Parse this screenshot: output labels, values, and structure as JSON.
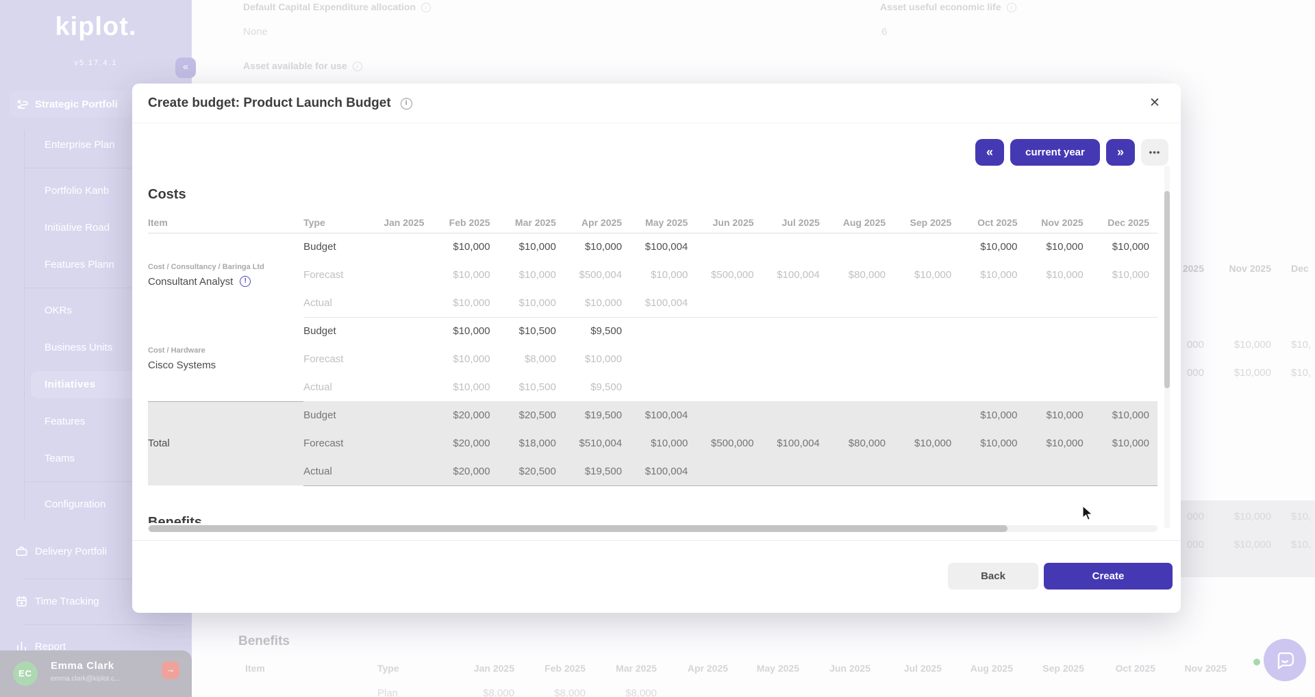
{
  "colors": {
    "accent": "#4539b3",
    "sidebar": "#d9d7ee",
    "total_row_bg": "#e9e9e9",
    "logout_red": "#efa29b",
    "avatar_green": "#aed7b2"
  },
  "sidebar": {
    "logo": "kiplot.",
    "version": "v5.17.4.1",
    "collapse_glyph": "«",
    "section": {
      "label": "Strategic Portfoli"
    },
    "items": [
      {
        "label": "Enterprise Plan",
        "divider_after": true
      },
      {
        "label": "Portfolio Kanb"
      },
      {
        "label": "Initiative Road"
      },
      {
        "label": "Features Plann",
        "divider_after": true
      },
      {
        "label": "OKRs"
      },
      {
        "label": "Business Units"
      },
      {
        "label": "Initiatives",
        "active": true
      },
      {
        "label": "Features"
      },
      {
        "label": "Teams",
        "divider_after": true
      },
      {
        "label": "Configuration"
      }
    ],
    "bottom_items": [
      {
        "label": "Delivery Portfoli",
        "icon": "briefcase"
      },
      {
        "label": "Time Tracking",
        "icon": "calendar"
      },
      {
        "label": "Report",
        "icon": "report"
      }
    ],
    "user": {
      "initials": "EC",
      "name": "Emma Clark",
      "email": "emma.clark@kiplot.c...",
      "logout_glyph": "→"
    }
  },
  "background": {
    "fields": {
      "capex_label": "Default Capital Expenditure allocation",
      "capex_value": "None",
      "asset_available_label": "Asset available for use",
      "asset_life_label": "Asset useful economic life",
      "asset_life_value": "6"
    },
    "right_table": {
      "headers": [
        "2025",
        "Nov 2025",
        "Dec"
      ],
      "rows": [
        [
          "000",
          "$10,000",
          "$10,"
        ],
        [
          "000",
          "$10,000",
          "$10,"
        ]
      ],
      "total_rows": [
        [
          "000",
          "$10,000",
          "$10,"
        ],
        [
          "000",
          "$10,000",
          "$10,"
        ]
      ]
    },
    "benefits": {
      "heading": "Benefits",
      "columns": [
        "Item",
        "Type",
        "Jan 2025",
        "Feb 2025",
        "Mar 2025",
        "Apr 2025",
        "May 2025",
        "Jun 2025",
        "Jul 2025",
        "Aug 2025",
        "Sep 2025",
        "Oct 2025",
        "Nov 2025"
      ],
      "row_type": "Plan",
      "row_values": [
        "$8,000",
        "$8,000",
        "$8,000"
      ]
    }
  },
  "modal": {
    "title": "Create budget: Product Launch Budget",
    "close_glyph": "✕",
    "toolbar": {
      "prev": "«",
      "range": "current year",
      "next": "»",
      "more": "•••"
    },
    "costs": {
      "heading": "Costs",
      "columns": [
        "Item",
        "Type",
        "Jan 2025",
        "Feb 2025",
        "Mar 2025",
        "Apr 2025",
        "May 2025",
        "Jun 2025",
        "Jul 2025",
        "Aug 2025",
        "Sep 2025",
        "Oct 2025",
        "Nov 2025",
        "Dec 2025"
      ],
      "groups": [
        {
          "category": "Cost / Consultancy / Baringa Ltd",
          "item": "Consultant Analyst",
          "info": true,
          "rows": [
            {
              "type": "Budget",
              "emphasis": "dark",
              "values": [
                "",
                "$10,000",
                "$10,000",
                "$10,000",
                "$100,004",
                "",
                "",
                "",
                "",
                "$10,000",
                "$10,000",
                "$10,000"
              ]
            },
            {
              "type": "Forecast",
              "emphasis": "light",
              "values": [
                "",
                "$10,000",
                "$10,000",
                "$500,004",
                "$10,000",
                "$500,000",
                "$100,004",
                "$80,000",
                "$10,000",
                "$10,000",
                "$10,000",
                "$10,000"
              ]
            },
            {
              "type": "Actual",
              "emphasis": "light",
              "values": [
                "",
                "$10,000",
                "$10,000",
                "$10,000",
                "$100,004",
                "",
                "",
                "",
                "",
                "",
                "",
                ""
              ]
            }
          ]
        },
        {
          "category": "Cost / Hardware",
          "item": "Cisco Systems",
          "info": false,
          "rows": [
            {
              "type": "Budget",
              "emphasis": "dark",
              "values": [
                "",
                "$10,000",
                "$10,500",
                "$9,500",
                "",
                "",
                "",
                "",
                "",
                "",
                "",
                ""
              ]
            },
            {
              "type": "Forecast",
              "emphasis": "light",
              "values": [
                "",
                "$10,000",
                "$8,000",
                "$10,000",
                "",
                "",
                "",
                "",
                "",
                "",
                "",
                ""
              ]
            },
            {
              "type": "Actual",
              "emphasis": "light",
              "values": [
                "",
                "$10,000",
                "$10,500",
                "$9,500",
                "",
                "",
                "",
                "",
                "",
                "",
                "",
                ""
              ]
            }
          ]
        },
        {
          "item": "Total",
          "total": true,
          "rows": [
            {
              "type": "Budget",
              "emphasis": "med",
              "values": [
                "",
                "$20,000",
                "$20,500",
                "$19,500",
                "$100,004",
                "",
                "",
                "",
                "",
                "$10,000",
                "$10,000",
                "$10,000"
              ]
            },
            {
              "type": "Forecast",
              "emphasis": "med",
              "values": [
                "",
                "$20,000",
                "$18,000",
                "$510,004",
                "$10,000",
                "$500,000",
                "$100,004",
                "$80,000",
                "$10,000",
                "$10,000",
                "$10,000",
                "$10,000"
              ]
            },
            {
              "type": "Actual",
              "emphasis": "med",
              "values": [
                "",
                "$20,000",
                "$20,500",
                "$19,500",
                "$100,004",
                "",
                "",
                "",
                "",
                "",
                "",
                ""
              ]
            }
          ]
        }
      ]
    },
    "benefits_heading": "Benefits",
    "footer": {
      "back": "Back",
      "create": "Create"
    }
  }
}
